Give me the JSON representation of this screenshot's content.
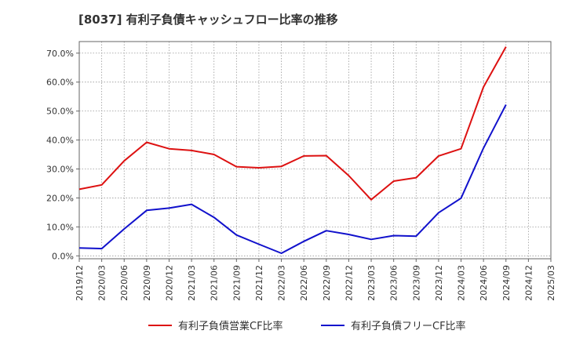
{
  "chart_data": {
    "type": "line",
    "title": "[8037]  有利子負債キャッシュフロー比率の推移",
    "xlabel": "",
    "ylabel": "",
    "x": [
      "2019/12",
      "2020/03",
      "2020/06",
      "2020/09",
      "2020/12",
      "2021/03",
      "2021/06",
      "2021/09",
      "2021/12",
      "2022/03",
      "2022/06",
      "2022/09",
      "2022/12",
      "2023/03",
      "2023/06",
      "2023/09",
      "2023/12",
      "2024/03",
      "2024/06",
      "2024/09",
      "2024/12",
      "2025/03"
    ],
    "ylim": [
      -0.01,
      0.74
    ],
    "yticks": [
      0.0,
      0.1,
      0.2,
      0.3,
      0.4,
      0.5,
      0.6,
      0.7
    ],
    "ytick_labels": [
      "0.0%",
      "10.0%",
      "20.0%",
      "30.0%",
      "40.0%",
      "50.0%",
      "60.0%",
      "70.0%"
    ],
    "grid": true,
    "legend_position": "bottom",
    "series": [
      {
        "name": "有利子負債営業CF比率",
        "color": "#dd1111",
        "values": [
          0.23,
          0.245,
          0.328,
          0.392,
          0.37,
          0.364,
          0.35,
          0.308,
          0.304,
          0.309,
          0.345,
          0.346,
          0.277,
          0.194,
          0.258,
          0.27,
          0.345,
          0.37,
          0.583,
          0.722,
          null,
          null
        ]
      },
      {
        "name": "有利子負債フリーCF比率",
        "color": "#1111cc",
        "values": [
          0.027,
          0.025,
          0.093,
          0.157,
          0.165,
          0.178,
          0.133,
          0.072,
          0.04,
          0.009,
          0.05,
          0.087,
          0.074,
          0.057,
          0.07,
          0.068,
          0.149,
          0.199,
          0.372,
          0.522,
          null,
          null
        ]
      }
    ]
  }
}
